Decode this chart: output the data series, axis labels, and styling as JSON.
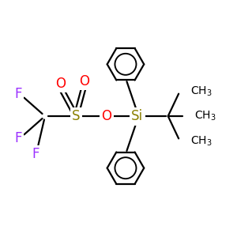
{
  "background_color": "#ffffff",
  "bond_color": "#000000",
  "Si_color": "#8B8000",
  "O_color": "#FF0000",
  "S_color": "#8B8000",
  "F_color": "#9B30FF",
  "C_color": "#000000",
  "figsize": [
    3.0,
    3.0
  ],
  "dpi": 100,
  "xlim": [
    0,
    10
  ],
  "ylim": [
    0,
    10
  ],
  "lw": 1.6
}
